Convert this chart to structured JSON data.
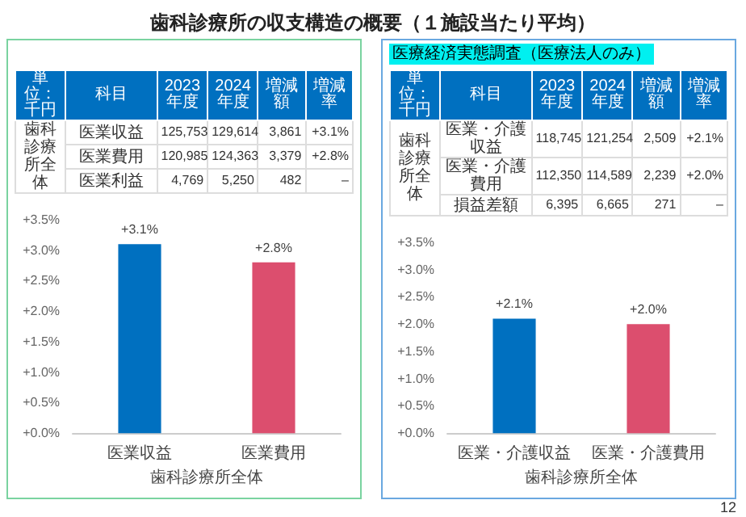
{
  "chart_data": [
    {
      "type": "other",
      "title": "歯科診療所の収支構造の概要（１施設当たり平均）",
      "annotations": [
        "12"
      ]
    },
    {
      "type": "other",
      "annotations": [
        "単位：千円",
        "科目",
        "2023年度",
        "2024年度",
        "増減額",
        "増減率",
        "歯科診療所全体",
        "医業収益",
        "125,753",
        "129,614",
        "3,861",
        "+3.1%",
        "医業費用",
        "120,985",
        "124,363",
        "3,379",
        "+2.8%",
        "医業利益",
        "4,769",
        "5,250",
        "482",
        "–"
      ]
    },
    {
      "type": "bar",
      "categories": [
        "医業収益",
        "医業費用"
      ],
      "values": [
        3.1,
        2.8
      ],
      "colors": [
        "#0070c0",
        "#dc4e6e"
      ],
      "value_labels": [
        "+3.1%",
        "+2.8%"
      ],
      "xlabel": "歯科診療所全体",
      "ylim": [
        0,
        3.5
      ],
      "yticks": [
        {
          "value": 0,
          "label": "+0.0%"
        },
        {
          "value": 0.5,
          "label": "+0.5%"
        },
        {
          "value": 1,
          "label": "+1.0%"
        },
        {
          "value": 1.5,
          "label": "+1.5%"
        },
        {
          "value": 2,
          "label": "+2.0%"
        },
        {
          "value": 2.5,
          "label": "+2.5%"
        },
        {
          "value": 3,
          "label": "+3.0%"
        },
        {
          "value": 3.5,
          "label": "+3.5%"
        }
      ],
      "grid": false
    },
    {
      "type": "other",
      "title": "医療経済実態調査（医療法人のみ）",
      "annotations": [
        "単位：千円",
        "科目",
        "2023年度",
        "2024年度",
        "増減額",
        "増減率",
        "歯科診療所全体",
        "医業・介護収益",
        "118,745",
        "121,254",
        "2,509",
        "+2.1%",
        "医業・介護費用",
        "112,350",
        "114,589",
        "2,239",
        "+2.0%",
        "損益差額",
        "6,395",
        "6,665",
        "271",
        "–"
      ]
    },
    {
      "type": "bar",
      "categories": [
        "医業・介護収益",
        "医業・介護費用"
      ],
      "values": [
        2.1,
        2.0
      ],
      "colors": [
        "#0070c0",
        "#dc4e6e"
      ],
      "value_labels": [
        "+2.1%",
        "+2.0%"
      ],
      "xlabel": "歯科診療所全体",
      "ylim": [
        0,
        3.5
      ],
      "yticks": [
        {
          "value": 0,
          "label": "+0.0%"
        },
        {
          "value": 0.5,
          "label": "+0.5%"
        },
        {
          "value": 1,
          "label": "+1.0%"
        },
        {
          "value": 1.5,
          "label": "+1.5%"
        },
        {
          "value": 2,
          "label": "+2.0%"
        },
        {
          "value": 2.5,
          "label": "+2.5%"
        },
        {
          "value": 3,
          "label": "+3.0%"
        },
        {
          "value": 3.5,
          "label": "+3.5%"
        }
      ],
      "grid": false
    }
  ]
}
